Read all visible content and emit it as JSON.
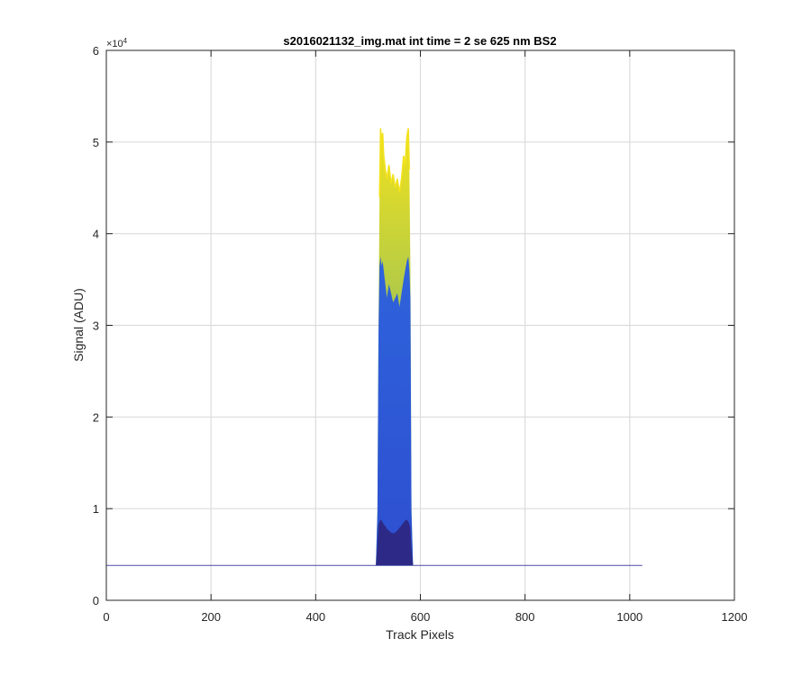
{
  "chart_data": {
    "type": "area",
    "title": "s2016021132_img.mat int time = 2 se  625 nm BS2",
    "xlabel": "Track Pixels",
    "ylabel": "Signal (ADU)",
    "xlim": [
      0,
      1200
    ],
    "ylim": [
      0,
      60000
    ],
    "xticks": [
      0,
      200,
      400,
      600,
      800,
      1000,
      1200
    ],
    "xtick_labels": [
      "0",
      "200",
      "400",
      "600",
      "800",
      "1000",
      "1200"
    ],
    "yticks": [
      0,
      10000,
      20000,
      30000,
      40000,
      50000,
      60000
    ],
    "ytick_labels": [
      "0",
      "1",
      "2",
      "3",
      "4",
      "5",
      "6"
    ],
    "y_exponent_base": "×10",
    "y_exponent_power": "4",
    "grid": true,
    "baseline": {
      "x": [
        0,
        1024
      ],
      "y": 3800
    },
    "colormap": [
      "#2d2a87",
      "#2f58d8",
      "#1f70d8",
      "#3aa0c8",
      "#5fbf93",
      "#a6c650",
      "#f2e21c"
    ],
    "series": [
      {
        "x": [
          515,
          518,
          520,
          522,
          524,
          526,
          528,
          530,
          533,
          536,
          540,
          544,
          548,
          552,
          556,
          560,
          564,
          568,
          571,
          574,
          577,
          579,
          581,
          583,
          586
        ],
        "y": [
          3800,
          10000,
          30000,
          44000,
          51500,
          50000,
          51000,
          48500,
          47000,
          46000,
          47500,
          45500,
          46500,
          45000,
          46000,
          44500,
          46000,
          48500,
          47500,
          50500,
          51500,
          47000,
          36000,
          10000,
          3800
        ]
      },
      {
        "x": [
          515,
          518,
          520,
          522,
          524,
          526,
          528,
          530,
          533,
          536,
          540,
          544,
          548,
          552,
          556,
          560,
          564,
          568,
          571,
          574,
          577,
          579,
          581,
          583,
          586
        ],
        "y": [
          3800,
          9500,
          29000,
          36500,
          37500,
          36500,
          37000,
          36000,
          34500,
          33000,
          34500,
          33500,
          32500,
          33000,
          33500,
          32000,
          33500,
          35000,
          36000,
          37000,
          37500,
          36000,
          33000,
          9500,
          3800
        ]
      },
      {
        "x": [
          515,
          518,
          520,
          522,
          524,
          526,
          528,
          530,
          533,
          536,
          540,
          544,
          548,
          552,
          556,
          560,
          564,
          568,
          571,
          574,
          577,
          579,
          581,
          583,
          586
        ],
        "y": [
          3800,
          6000,
          8200,
          8600,
          8800,
          8700,
          8500,
          8300,
          8100,
          7800,
          7600,
          7400,
          7300,
          7400,
          7600,
          7900,
          8200,
          8500,
          8700,
          8800,
          8600,
          8300,
          7900,
          5500,
          3800
        ]
      }
    ]
  }
}
